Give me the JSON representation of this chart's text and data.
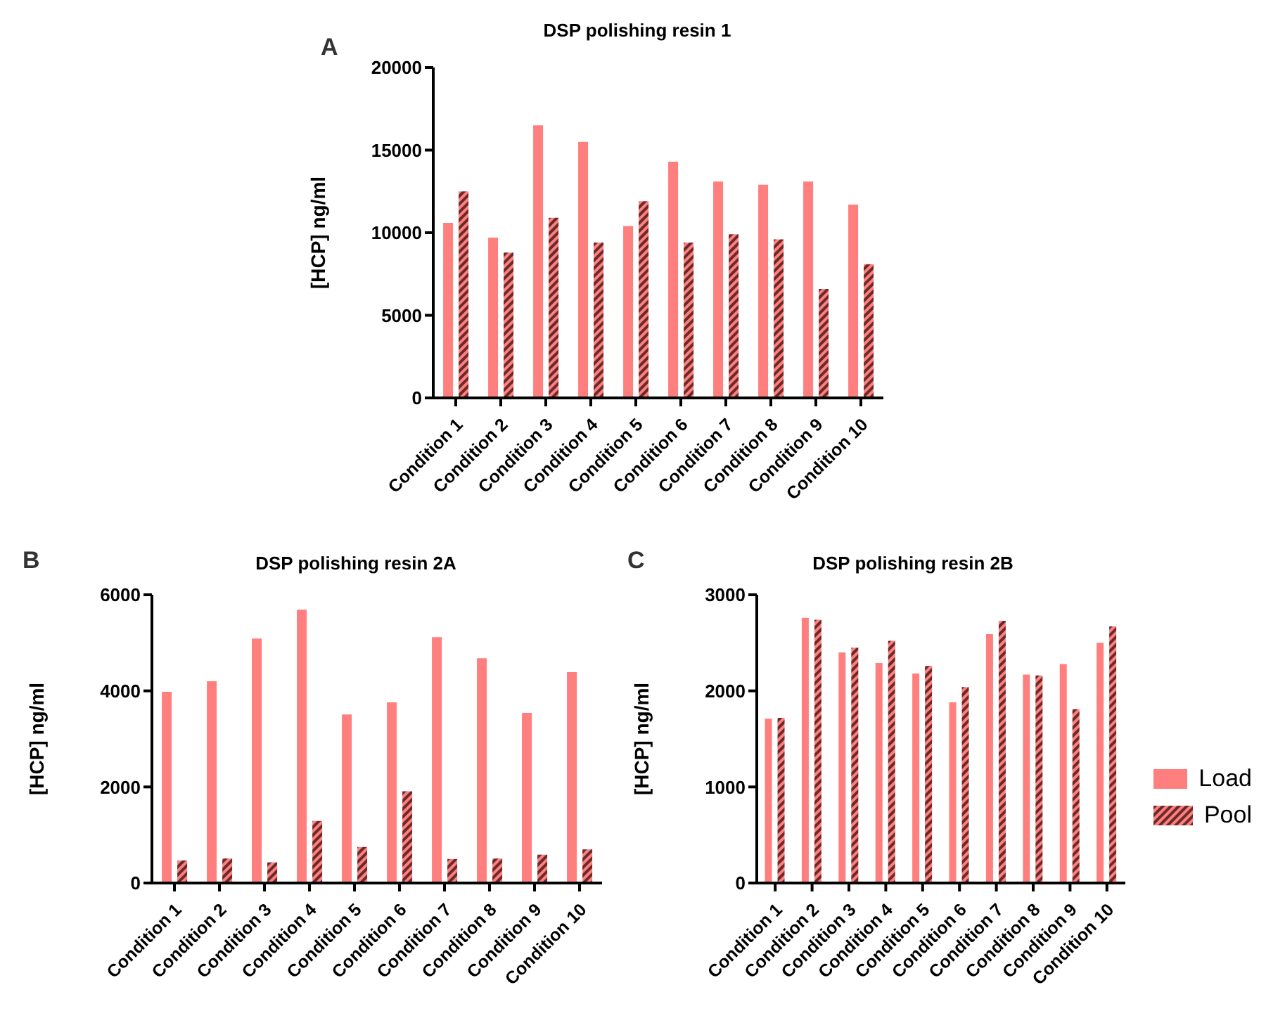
{
  "chart_data": [
    {
      "type": "bar",
      "title": "DSP polishing resin 1",
      "ylabel": "[HCP] ng/ml",
      "annotations": [
        "A"
      ],
      "categories": [
        "Condition 1",
        "Condition 2",
        "Condition 3",
        "Condition 4",
        "Condition 5",
        "Condition 6",
        "Condition 7",
        "Condition 8",
        "Condition 9",
        "Condition 10"
      ],
      "series": [
        {
          "color": "#ff7f7f",
          "values": [
            10600,
            9700,
            16500,
            15500,
            10400,
            14300,
            13100,
            12900,
            13100,
            11700
          ]
        },
        {
          "color": "#6b2a2a",
          "values": [
            12500,
            8800,
            10900,
            9400,
            11900,
            9400,
            9900,
            9600,
            6600,
            8100
          ]
        }
      ],
      "ylim": [
        0,
        20000
      ],
      "yticks": [
        0,
        5000,
        10000,
        15000,
        20000
      ],
      "grid": false,
      "legend": false
    },
    {
      "type": "bar",
      "title": "DSP polishing resin 2A",
      "ylabel": "[HCP] ng/ml",
      "annotations": [
        "B"
      ],
      "categories": [
        "Condition 1",
        "Condition 2",
        "Condition 3",
        "Condition 4",
        "Condition 5",
        "Condition 6",
        "Condition 7",
        "Condition 8",
        "Condition 9",
        "Condition 10"
      ],
      "series": [
        {
          "color": "#ff7f7f",
          "values": [
            3980,
            4200,
            5090,
            5690,
            3510,
            3760,
            5120,
            4680,
            3540,
            4390
          ]
        },
        {
          "color": "#6b2a2a",
          "values": [
            470,
            510,
            430,
            1290,
            750,
            1910,
            500,
            510,
            590,
            700
          ]
        }
      ],
      "ylim": [
        0,
        6000
      ],
      "yticks": [
        0,
        2000,
        4000,
        6000
      ],
      "grid": false,
      "legend": false
    },
    {
      "type": "bar",
      "title": "DSP polishing resin 2B",
      "ylabel": "[HCP] ng/ml",
      "annotations": [
        "C"
      ],
      "categories": [
        "Condition 1",
        "Condition 2",
        "Condition 3",
        "Condition 4",
        "Condition 5",
        "Condition 6",
        "Condition 7",
        "Condition 8",
        "Condition 9",
        "Condition 10"
      ],
      "series": [
        {
          "name": "Load",
          "color": "#ff7f7f",
          "values": [
            1710,
            2760,
            2400,
            2290,
            2180,
            1880,
            2590,
            2170,
            2280,
            2500
          ]
        },
        {
          "name": "Pool",
          "color": "#6b2a2a",
          "values": [
            1720,
            2740,
            2450,
            2520,
            2260,
            2040,
            2730,
            2160,
            1810,
            2670
          ]
        }
      ],
      "ylim": [
        0,
        3000
      ],
      "yticks": [
        0,
        1000,
        2000,
        3000
      ],
      "grid": false,
      "legend": "right"
    }
  ]
}
